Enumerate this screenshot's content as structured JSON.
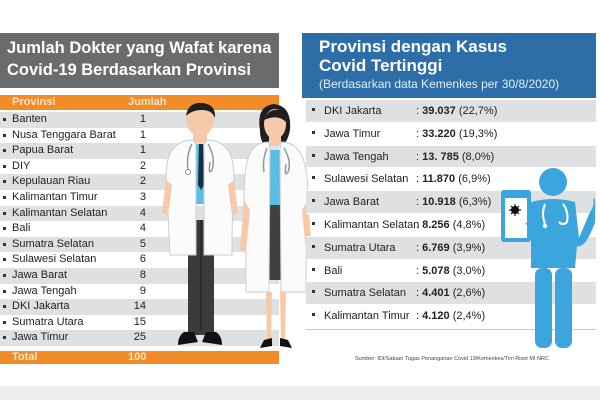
{
  "left_panel": {
    "title_line1": "Jumlah Dokter yang Wafat karena",
    "title_line2": "Covid-19 Berdasarkan Provinsi",
    "columns": {
      "province": "Provinsi",
      "count": "Jumlah"
    },
    "rows": [
      {
        "name": "Banten",
        "value": "1"
      },
      {
        "name": "Nusa Tenggara Barat",
        "value": "1"
      },
      {
        "name": "Papua Barat",
        "value": "1"
      },
      {
        "name": "DIY",
        "value": "2"
      },
      {
        "name": "Kepulauan Riau",
        "value": "2"
      },
      {
        "name": "Kalimantan Timur",
        "value": "3"
      },
      {
        "name": "Kalimantan Selatan",
        "value": "4"
      },
      {
        "name": "Bali",
        "value": "4"
      },
      {
        "name": "Sumatra Selatan",
        "value": "5"
      },
      {
        "name": "Sulawesi Selatan",
        "value": "6"
      },
      {
        "name": "Jawa Barat",
        "value": "8"
      },
      {
        "name": "Jawa Tengah",
        "value": "9"
      },
      {
        "name": "DKI Jakarta",
        "value": "14"
      },
      {
        "name": "Sumatra Utara",
        "value": "15"
      },
      {
        "name": "Jawa Timur",
        "value": "25"
      }
    ],
    "total_label": "Total",
    "total_value": "100"
  },
  "right_panel": {
    "title_line1": "Provinsi dengan  Kasus",
    "title_line2": "Covid Tertinggi",
    "subtitle": "(Berdasarkan data Kemenkes per 30/8/2020)",
    "rows": [
      {
        "name": "DKI Jakarta",
        "cases": "39.037",
        "pct": "(22,7%)"
      },
      {
        "name": "Jawa Timur",
        "cases": "33.220",
        "pct": "(19,3%)"
      },
      {
        "name": "Jawa Tengah",
        "cases": "13. 785",
        "pct": "(8,0%)"
      },
      {
        "name": "Sulawesi Selatan",
        "cases": "11.870",
        "pct": "(6,9%)"
      },
      {
        "name": "Jawa Barat",
        "cases": "10.918",
        "pct": "(6,3%)"
      },
      {
        "name": "Kalimantan Selatan",
        "cases": "8.256",
        "pct": "(4,8%)"
      },
      {
        "name": "Sumatra Utara",
        "cases": "6.769",
        "pct": "(3,9%)"
      },
      {
        "name": "Bali",
        "cases": "5.078",
        "pct": "(3,0%)"
      },
      {
        "name": "Sumatra Selatan",
        "cases": "4.401",
        "pct": "(2,6%)"
      },
      {
        "name": "Kalimantan Timur",
        "cases": "4.120",
        "pct": "(2,4%)"
      }
    ],
    "separator": ": "
  },
  "source": "Sumber: IDI/Satuan Tugas Penanganan Covid 19/Kemenkes/Tim Riset MI NRC",
  "icons": {
    "doctors": "male-and-female-doctor-illustration",
    "medic": "medic-with-virus-clipboard-illustration"
  },
  "colors": {
    "left_header": "#6a6b6d",
    "orange": "#f28c28",
    "right_header": "#2d6ea8",
    "medic_blue": "#3aa6dd",
    "row_shade": "#dfe0e2"
  }
}
